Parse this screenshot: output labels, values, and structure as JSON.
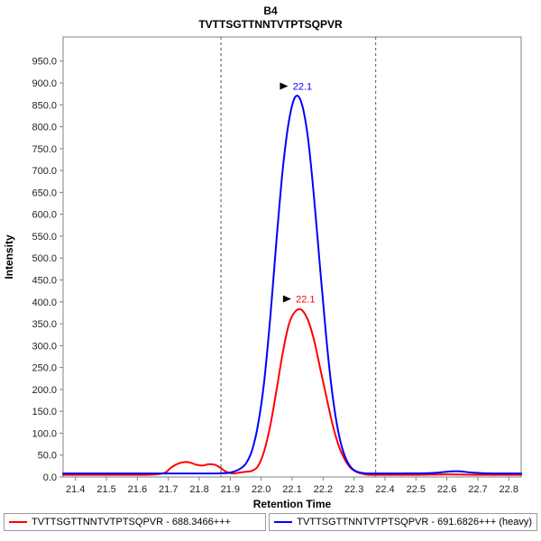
{
  "header": {
    "title": "B4",
    "subtitle": "TVTTSGTTNNTVTPTSQPVR"
  },
  "axes": {
    "x_label": "Retention Time",
    "y_label": "Intensity"
  },
  "legend": [
    {
      "label": "TVTTSGTTNNTVTPTSQPVR - 688.3466+++",
      "color": "#ff0000"
    },
    {
      "label": "TVTTSGTTNNTVTPTSQPVR - 691.6826+++ (heavy)",
      "color": "#0000ff"
    }
  ],
  "chart_data": {
    "type": "line",
    "title": "B4",
    "subtitle": "TVTTSGTTNNTVTPTSQPVR",
    "xlabel": "Retention Time",
    "ylabel": "Intensity",
    "xlim": [
      21.36,
      22.84
    ],
    "ylim": [
      0,
      1005
    ],
    "x_ticks": [
      21.4,
      21.5,
      21.6,
      21.7,
      21.8,
      21.9,
      22.0,
      22.1,
      22.2,
      22.3,
      22.4,
      22.5,
      22.6,
      22.7,
      22.8
    ],
    "y_ticks": [
      0,
      50,
      100,
      150,
      200,
      250,
      300,
      350,
      400,
      450,
      500,
      550,
      600,
      650,
      700,
      750,
      800,
      850,
      900,
      950
    ],
    "integration_boundaries": [
      21.87,
      22.37
    ],
    "grid": false,
    "legend_position": "bottom",
    "series": [
      {
        "name": "TVTTSGTTNNTVTPTSQPVR - 688.3466+++",
        "color": "#ff0000",
        "peak_label": "22.1",
        "peak": {
          "x": 22.12,
          "y": 382
        },
        "points": [
          [
            21.36,
            5
          ],
          [
            21.45,
            5
          ],
          [
            21.55,
            5
          ],
          [
            21.62,
            5
          ],
          [
            21.66,
            6
          ],
          [
            21.69,
            10
          ],
          [
            21.71,
            22
          ],
          [
            21.73,
            30
          ],
          [
            21.75,
            34
          ],
          [
            21.77,
            33
          ],
          [
            21.79,
            28
          ],
          [
            21.81,
            26
          ],
          [
            21.83,
            29
          ],
          [
            21.85,
            28
          ],
          [
            21.87,
            20
          ],
          [
            21.89,
            11
          ],
          [
            21.91,
            8
          ],
          [
            21.93,
            10
          ],
          [
            21.95,
            12
          ],
          [
            21.97,
            14
          ],
          [
            21.99,
            25
          ],
          [
            22.01,
            60
          ],
          [
            22.03,
            120
          ],
          [
            22.05,
            200
          ],
          [
            22.07,
            285
          ],
          [
            22.09,
            350
          ],
          [
            22.11,
            378
          ],
          [
            22.13,
            382
          ],
          [
            22.15,
            360
          ],
          [
            22.17,
            315
          ],
          [
            22.19,
            250
          ],
          [
            22.21,
            185
          ],
          [
            22.23,
            122
          ],
          [
            22.25,
            72
          ],
          [
            22.27,
            40
          ],
          [
            22.29,
            20
          ],
          [
            22.31,
            11
          ],
          [
            22.33,
            7
          ],
          [
            22.35,
            5
          ],
          [
            22.4,
            5
          ],
          [
            22.5,
            5
          ],
          [
            22.6,
            6
          ],
          [
            22.7,
            5
          ],
          [
            22.8,
            5
          ],
          [
            22.84,
            5
          ]
        ]
      },
      {
        "name": "TVTTSGTTNNTVTPTSQPVR - 691.6826+++ (heavy)",
        "color": "#0000ff",
        "peak_label": "22.1",
        "peak": {
          "x": 22.11,
          "y": 868
        },
        "points": [
          [
            21.36,
            8
          ],
          [
            21.5,
            8
          ],
          [
            21.65,
            8
          ],
          [
            21.75,
            8
          ],
          [
            21.85,
            8
          ],
          [
            21.89,
            9
          ],
          [
            21.91,
            12
          ],
          [
            21.93,
            18
          ],
          [
            21.95,
            30
          ],
          [
            21.97,
            60
          ],
          [
            21.99,
            120
          ],
          [
            22.01,
            220
          ],
          [
            22.03,
            370
          ],
          [
            22.05,
            545
          ],
          [
            22.07,
            705
          ],
          [
            22.09,
            815
          ],
          [
            22.11,
            868
          ],
          [
            22.13,
            855
          ],
          [
            22.15,
            780
          ],
          [
            22.17,
            645
          ],
          [
            22.19,
            480
          ],
          [
            22.21,
            320
          ],
          [
            22.23,
            190
          ],
          [
            22.25,
            100
          ],
          [
            22.27,
            48
          ],
          [
            22.29,
            22
          ],
          [
            22.31,
            12
          ],
          [
            22.33,
            9
          ],
          [
            22.35,
            8
          ],
          [
            22.45,
            8
          ],
          [
            22.55,
            9
          ],
          [
            22.6,
            12
          ],
          [
            22.64,
            13
          ],
          [
            22.68,
            10
          ],
          [
            22.75,
            8
          ],
          [
            22.84,
            8
          ]
        ]
      }
    ]
  }
}
